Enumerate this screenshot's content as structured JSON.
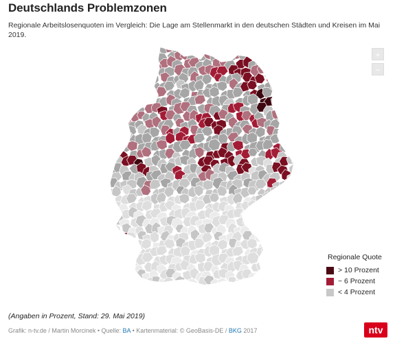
{
  "header": {
    "title": "Deutschlands Problemzonen",
    "subtitle": "Regionale Arbeitslosenquoten im Vergleich: Die Lage am Stellenmarkt in den deutschen Städten und Kreisen im Mai 2019."
  },
  "map_controls": {
    "zoom_in": "+",
    "zoom_out": "−"
  },
  "legend": {
    "title": "Regionale Quote",
    "items": [
      {
        "label": "> 10 Prozent",
        "color": "#4a0a14"
      },
      {
        "label": "~ 6 Prozent",
        "color": "#a31c36"
      },
      {
        "label": "< 4 Prozent",
        "color": "#c8c8c8"
      }
    ]
  },
  "footer": {
    "stand": "(Angaben in Prozent, Stand: 29. Mai 2019)",
    "credit_prefix": "Grafik: n-tv.de / Martin Morcinek • Quelle: ",
    "credit_source": "BA",
    "credit_middle": " • Kartenmaterial: © GeoBasis-DE / ",
    "credit_bkg": "BKG",
    "credit_suffix": " 2017",
    "logo": "ntv"
  },
  "colors": {
    "very_high": "#3d0710",
    "high": "#7a0f22",
    "mid_high": "#a31c36",
    "mid": "#b0707e",
    "low_mid": "#a6a6a6",
    "low": "#c6c6c6",
    "very_low": "#dedede",
    "lowest": "#ebebeb"
  }
}
